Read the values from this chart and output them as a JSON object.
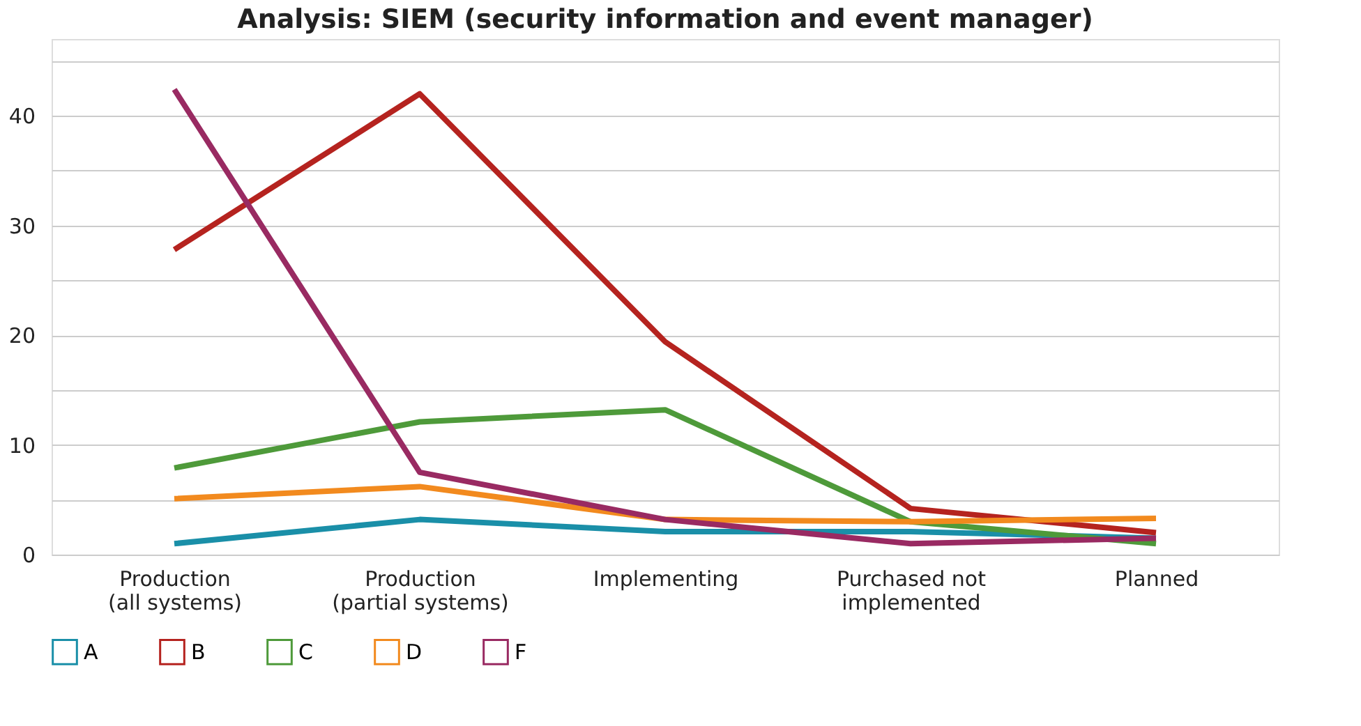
{
  "chart_data": {
    "type": "line",
    "title": "Analysis: SIEM (security information and event manager)",
    "categories": [
      "Production (all systems)",
      "Production (partial systems)",
      "Implementing",
      "Purchased not implemented",
      "Planned"
    ],
    "series": [
      {
        "name": "A",
        "color": "#1a8fa8",
        "values": [
          1.0,
          3.2,
          2.1,
          2.1,
          1.5
        ]
      },
      {
        "name": "B",
        "color": "#b5231f",
        "values": [
          27.8,
          42.0,
          19.4,
          4.2,
          2.0
        ]
      },
      {
        "name": "C",
        "color": "#4e9a3a",
        "values": [
          7.9,
          12.1,
          13.2,
          3.0,
          1.0
        ]
      },
      {
        "name": "D",
        "color": "#f28a1e",
        "values": [
          5.1,
          6.2,
          3.2,
          3.0,
          3.3
        ]
      },
      {
        "name": "F",
        "color": "#992a62",
        "values": [
          42.4,
          7.5,
          3.2,
          1.0,
          1.5
        ]
      }
    ],
    "ylim": [
      0,
      47
    ],
    "yticks": [
      0,
      {
        "value": 5,
        "label": null
      },
      10,
      {
        "value": 15,
        "label": null
      },
      20,
      {
        "value": 25,
        "label": null
      },
      30,
      {
        "value": 35,
        "label": null
      },
      40,
      {
        "value": 45,
        "label": null
      }
    ],
    "grid": "y",
    "legend": "bottom",
    "marker": "none",
    "line_style": "solid"
  }
}
